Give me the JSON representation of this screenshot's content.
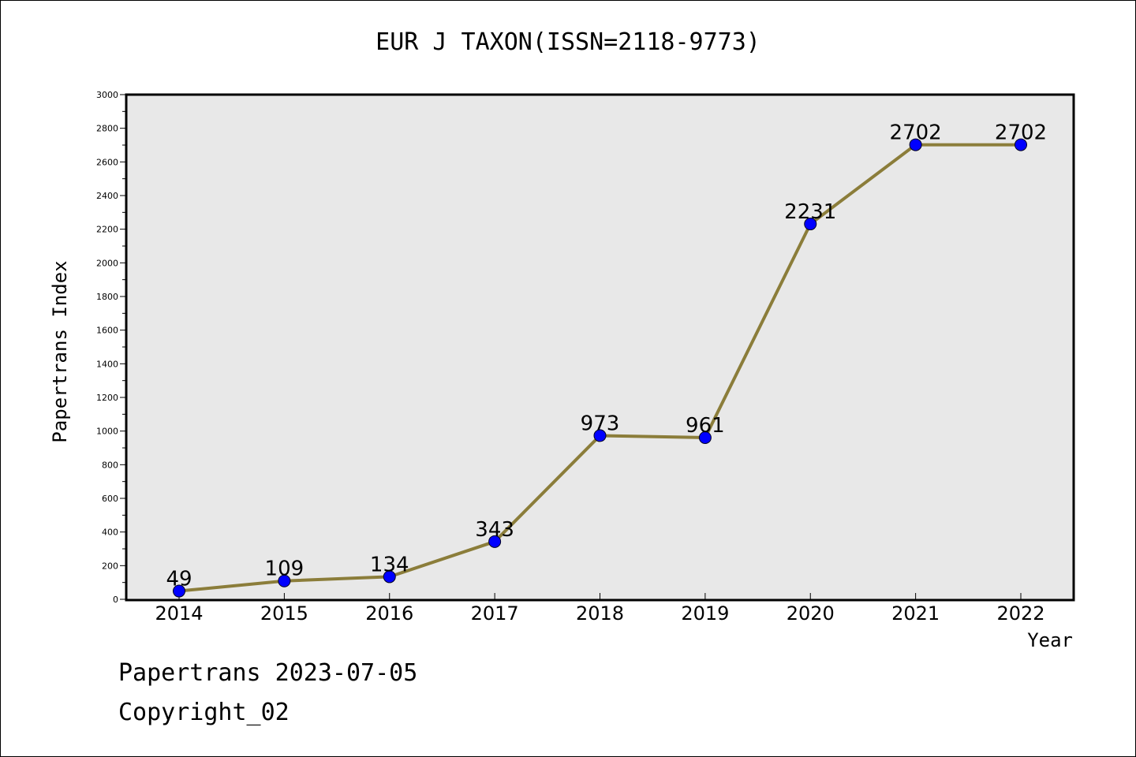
{
  "chart_data": {
    "type": "line",
    "title": "EUR J TAXON(ISSN=2118-9773)",
    "xlabel": "Year",
    "ylabel": "Papertrans Index",
    "x": [
      "2014",
      "2015",
      "2016",
      "2017",
      "2018",
      "2019",
      "2020",
      "2021",
      "2022"
    ],
    "series": [
      {
        "values": [
          49,
          109,
          134,
          343,
          973,
          961,
          2231,
          2702,
          2702
        ]
      }
    ],
    "data_labels": [
      "49",
      "109",
      "134",
      "343",
      "973",
      "961",
      "2231",
      "2702",
      "2702"
    ],
    "ylim": [
      0,
      3000
    ],
    "yticks": [
      0,
      200,
      400,
      600,
      800,
      1000,
      1200,
      1400,
      1600,
      1800,
      2000,
      2200,
      2400,
      2600,
      2800,
      3000
    ],
    "grid": false,
    "colors": {
      "line": "#8b7d3a",
      "marker": "#0000ff",
      "plot_bg": "#e8e8e8"
    }
  },
  "footer": {
    "date_line": "Papertrans 2023-07-05",
    "copyright": "Copyright_02"
  }
}
